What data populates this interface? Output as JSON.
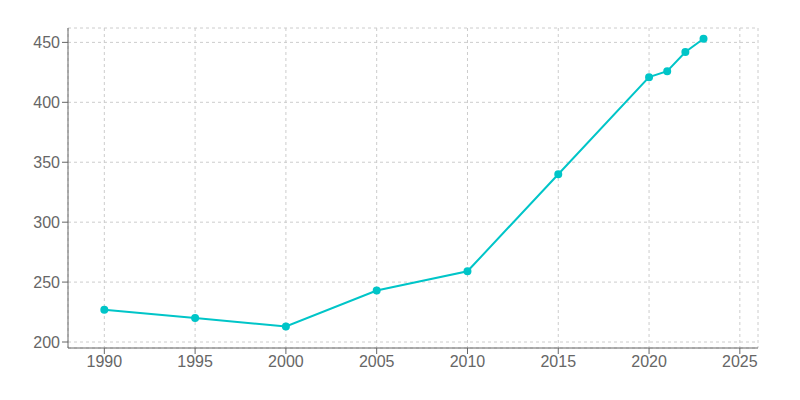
{
  "chart_data": {
    "type": "line",
    "x": [
      1990,
      1995,
      2000,
      2005,
      2010,
      2015,
      2020,
      2021,
      2022,
      2023
    ],
    "values": [
      227,
      220,
      213,
      243,
      259,
      340,
      421,
      426,
      442,
      453
    ],
    "color": "#00C5C8",
    "marker": "circle",
    "xlim": [
      1988,
      2026
    ],
    "ylim": [
      195,
      462
    ],
    "xticks": [
      1990,
      1995,
      2000,
      2005,
      2010,
      2015,
      2020,
      2025
    ],
    "yticks": [
      200,
      250,
      300,
      350,
      400,
      450
    ],
    "grid": true
  }
}
